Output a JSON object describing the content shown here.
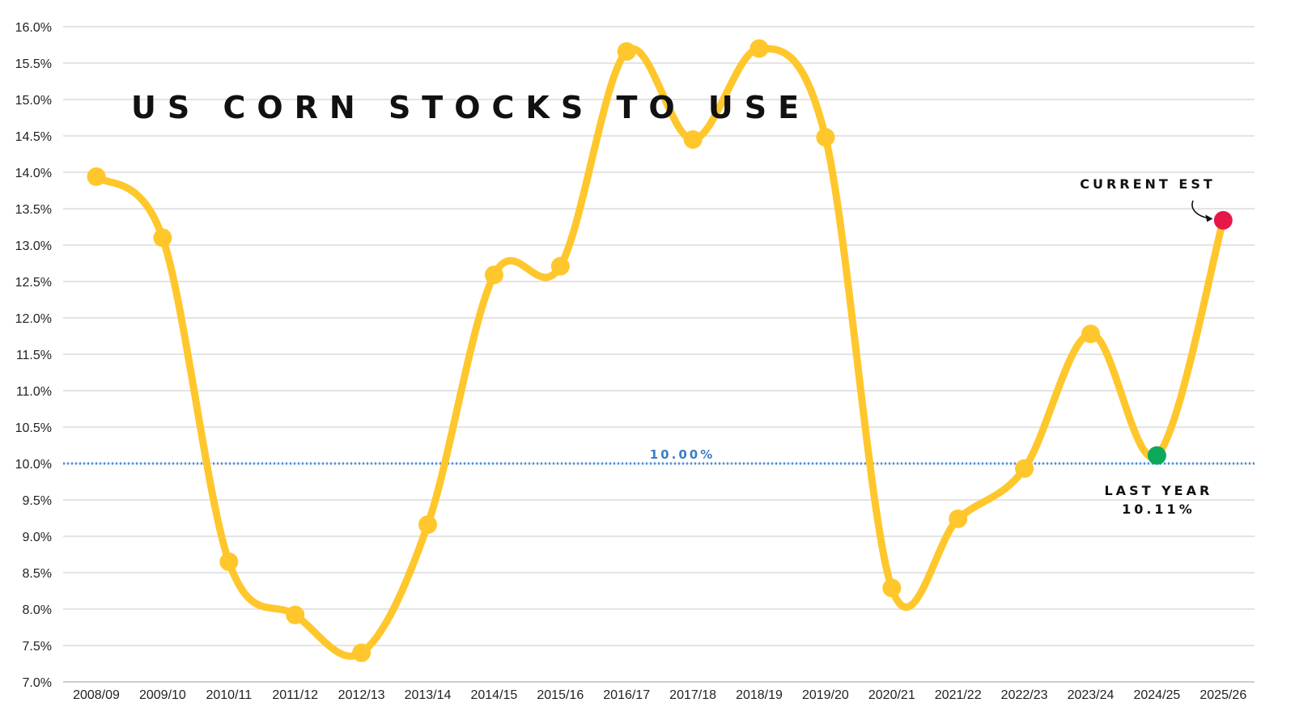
{
  "chart_data": {
    "type": "line",
    "title": "US CORN STOCKS TO USE",
    "categories": [
      "2008/09",
      "2009/10",
      "2010/11",
      "2011/12",
      "2012/13",
      "2013/14",
      "2014/15",
      "2015/16",
      "2016/17",
      "2017/18",
      "2018/19",
      "2019/20",
      "2020/21",
      "2021/22",
      "2022/23",
      "2023/24",
      "2024/25",
      "2025/26"
    ],
    "series": [
      {
        "values": [
          13.94,
          13.1,
          8.65,
          7.92,
          7.4,
          9.16,
          12.59,
          12.71,
          15.66,
          14.45,
          15.7,
          14.48,
          8.29,
          9.24,
          9.93,
          11.78,
          10.11,
          13.34
        ]
      }
    ],
    "ylim": [
      7.0,
      16.0
    ],
    "yticks": [
      "7.0%",
      "7.5%",
      "8.0%",
      "8.5%",
      "9.0%",
      "9.5%",
      "10.0%",
      "10.5%",
      "11.0%",
      "11.5%",
      "12.0%",
      "12.5%",
      "13.0%",
      "13.5%",
      "14.0%",
      "14.5%",
      "15.0%",
      "15.5%",
      "16.0%"
    ],
    "ytick_values": [
      7.0,
      7.5,
      8.0,
      8.5,
      9.0,
      9.5,
      10.0,
      10.5,
      11.0,
      11.5,
      12.0,
      12.5,
      13.0,
      13.5,
      14.0,
      14.5,
      15.0,
      15.5,
      16.0
    ],
    "grid": true,
    "reference_line": {
      "value": 10.0,
      "label": "10.00%"
    },
    "annotations": {
      "current": {
        "label": "CURRENT EST",
        "index": 17
      },
      "last_year": {
        "label": "LAST YEAR",
        "value_label": "10.11%",
        "index": 16
      }
    },
    "colors": {
      "line": "#FFC72C",
      "point": "#FFC72C",
      "current_point": "#E8174A",
      "last_year_point": "#0EA85A",
      "reference": "#4A90E2",
      "reference_label": "#3C7FC4",
      "grid": "#C8C8C8",
      "axis": "#999999"
    }
  }
}
